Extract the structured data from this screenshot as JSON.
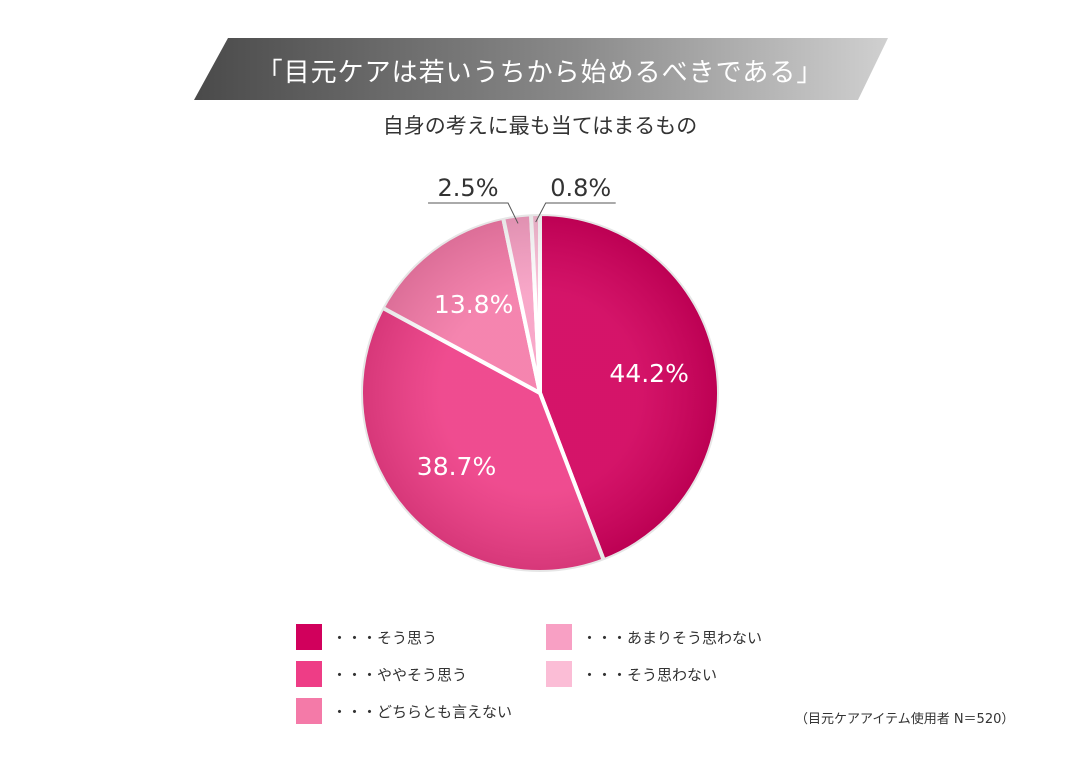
{
  "banner": {
    "title": "「目元ケアは若いうちから始めるべきである」"
  },
  "subtitle": "自身の考えに最も当てはまるもの",
  "note": "（目元ケアアイテム使用者 N＝520）",
  "chart_data": {
    "type": "pie",
    "labels": [
      "・・・そう思う",
      "・・・ややそう思う",
      "・・・どちらとも言えない",
      "・・・あまりそう思わない",
      "・・・そう思わない"
    ],
    "values": [
      44.2,
      38.7,
      13.8,
      2.5,
      0.8
    ],
    "value_labels": [
      "44.2%",
      "38.7%",
      "13.8%",
      "2.5%",
      "0.8%"
    ],
    "colors": [
      "#d1005c",
      "#ee3d86",
      "#f47aa8",
      "#f8a0c4",
      "#fbbdd6"
    ],
    "legend_placement": "bottom"
  }
}
